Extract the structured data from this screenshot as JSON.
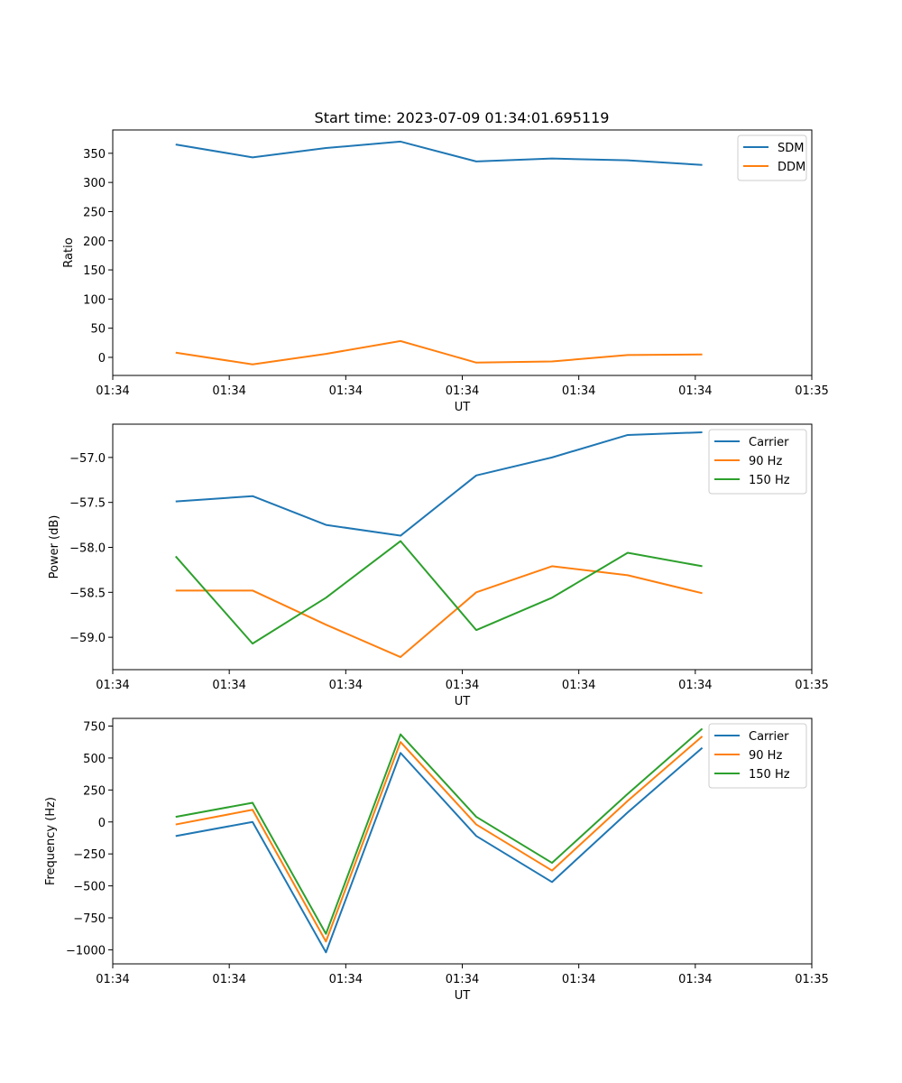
{
  "figure_title": "Start time: 2023-07-09 01:34:01.695119",
  "chart_data": [
    {
      "type": "line",
      "title": "Start time: 2023-07-09 01:34:01.695119",
      "xlabel": "UT",
      "ylabel": "Ratio",
      "x": [
        0.54,
        1.2,
        1.83,
        2.47,
        3.12,
        3.77,
        4.42,
        5.06
      ],
      "xlim": [
        0,
        6
      ],
      "xticks": [
        0,
        1,
        2,
        3,
        4,
        5,
        6
      ],
      "xtick_labels": [
        "01:34",
        "01:34",
        "01:34",
        "01:34",
        "01:34",
        "01:34",
        "01:35"
      ],
      "ylim": [
        -31,
        390
      ],
      "yticks": [
        0,
        50,
        100,
        150,
        200,
        250,
        300,
        350
      ],
      "ytick_labels": [
        "0",
        "50",
        "100",
        "150",
        "200",
        "250",
        "300",
        "350"
      ],
      "legend_position": "top-right",
      "series": [
        {
          "name": "SDM",
          "color": "#1f77b4",
          "values": [
            365,
            343,
            359,
            370,
            336,
            341,
            338,
            330
          ]
        },
        {
          "name": "DDM",
          "color": "#ff7f0e",
          "values": [
            8,
            -12,
            6,
            28,
            -9,
            -7,
            4,
            5
          ]
        }
      ]
    },
    {
      "type": "line",
      "title": "",
      "xlabel": "UT",
      "ylabel": "Power (dB)",
      "x": [
        0.54,
        1.2,
        1.83,
        2.47,
        3.12,
        3.77,
        4.42,
        5.06
      ],
      "xlim": [
        0,
        6
      ],
      "xticks": [
        0,
        1,
        2,
        3,
        4,
        5,
        6
      ],
      "xtick_labels": [
        "01:34",
        "01:34",
        "01:34",
        "01:34",
        "01:34",
        "01:34",
        "01:35"
      ],
      "ylim": [
        -59.36,
        -56.63
      ],
      "yticks": [
        -59.0,
        -58.5,
        -58.0,
        -57.5,
        -57.0
      ],
      "ytick_labels": [
        "−59.0",
        "−58.5",
        "−58.0",
        "−57.5",
        "−57.0"
      ],
      "legend_position": "top-right",
      "series": [
        {
          "name": "Carrier",
          "color": "#1f77b4",
          "values": [
            -57.49,
            -57.43,
            -57.75,
            -57.87,
            -57.2,
            -57.0,
            -56.75,
            -56.72
          ]
        },
        {
          "name": "90 Hz",
          "color": "#ff7f0e",
          "values": [
            -58.48,
            -58.48,
            -58.86,
            -59.22,
            -58.5,
            -58.21,
            -58.31,
            -58.51
          ]
        },
        {
          "name": "150 Hz",
          "color": "#2ca02c",
          "values": [
            -58.1,
            -59.07,
            -58.56,
            -57.93,
            -58.92,
            -58.56,
            -58.06,
            -58.21
          ]
        }
      ]
    },
    {
      "type": "line",
      "title": "",
      "xlabel": "UT",
      "ylabel": "Frequency (Hz)",
      "x": [
        0.54,
        1.2,
        1.83,
        2.47,
        3.12,
        3.77,
        4.42,
        5.06
      ],
      "xlim": [
        0,
        6
      ],
      "xticks": [
        0,
        1,
        2,
        3,
        4,
        5,
        6
      ],
      "xtick_labels": [
        "01:34",
        "01:34",
        "01:34",
        "01:34",
        "01:34",
        "01:34",
        "01:35"
      ],
      "ylim": [
        -1110,
        810
      ],
      "yticks": [
        -1000,
        -750,
        -500,
        -250,
        0,
        250,
        500,
        750
      ],
      "ytick_labels": [
        "−1000",
        "−750",
        "−500",
        "−250",
        "0",
        "250",
        "500",
        "750"
      ],
      "legend_position": "top-right",
      "series": [
        {
          "name": "Carrier",
          "color": "#1f77b4",
          "values": [
            -110,
            0,
            -1020,
            540,
            -110,
            -470,
            75,
            580
          ]
        },
        {
          "name": "90 Hz",
          "color": "#ff7f0e",
          "values": [
            -20,
            95,
            -935,
            625,
            -20,
            -380,
            165,
            670
          ]
        },
        {
          "name": "150 Hz",
          "color": "#2ca02c",
          "values": [
            40,
            150,
            -875,
            685,
            40,
            -320,
            220,
            730
          ]
        }
      ]
    }
  ]
}
